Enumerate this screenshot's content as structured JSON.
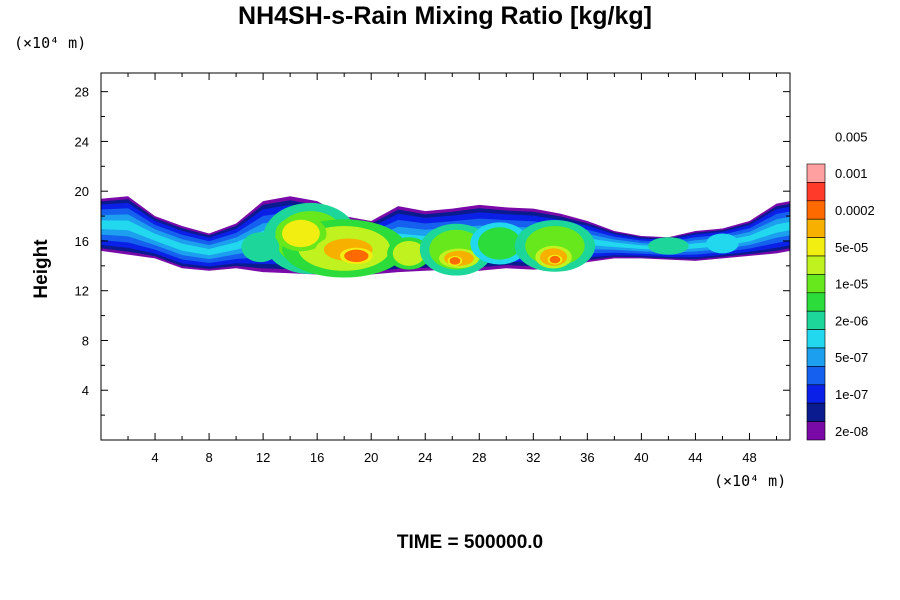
{
  "chart_data": {
    "type": "heatmap",
    "title": "NH4SH-s-Rain Mixing Ratio [kg/kg]",
    "ylabel": "Height",
    "y_unit": "(×10⁴ m)",
    "x_unit": "(×10⁴ m)",
    "footer": "TIME = 500000.0",
    "xlim": [
      0,
      51
    ],
    "ylim": [
      0,
      29.5
    ],
    "x_ticks": [
      4,
      8,
      12,
      16,
      20,
      24,
      28,
      32,
      36,
      40,
      44,
      48
    ],
    "y_ticks": [
      4,
      8,
      12,
      16,
      20,
      24,
      28
    ],
    "colorbar": {
      "colors": [
        "#7a0aa8",
        "#0a1a8f",
        "#0b20e6",
        "#1560ee",
        "#1b9fee",
        "#22d8ee",
        "#1cd69a",
        "#2bdc3a",
        "#67e81c",
        "#bff21e",
        "#f2ee12",
        "#f7b000",
        "#ff6a00",
        "#ff3a2a",
        "#ffa0a0"
      ],
      "labels": [
        "2e-08",
        "1e-07",
        "5e-07",
        "2e-06",
        "1e-05",
        "5e-05",
        "0.0002",
        "0.001",
        "0.005"
      ]
    },
    "band": {
      "outer": [
        [
          0,
          15.2,
          19.4
        ],
        [
          2,
          14.9,
          19.6
        ],
        [
          4,
          14.6,
          18.0
        ],
        [
          6,
          13.8,
          17.2
        ],
        [
          8,
          13.6,
          16.6
        ],
        [
          10,
          13.8,
          17.4
        ],
        [
          12,
          13.5,
          19.2
        ],
        [
          14,
          13.4,
          19.6
        ],
        [
          16,
          13.3,
          19.2
        ],
        [
          18,
          13.2,
          18.0
        ],
        [
          20,
          13.3,
          17.6
        ],
        [
          22,
          13.5,
          18.8
        ],
        [
          24,
          13.6,
          18.4
        ],
        [
          26,
          13.7,
          18.6
        ],
        [
          28,
          13.6,
          18.9
        ],
        [
          30,
          13.8,
          18.7
        ],
        [
          32,
          13.7,
          18.6
        ],
        [
          34,
          13.8,
          18.2
        ],
        [
          36,
          14.3,
          17.6
        ],
        [
          38,
          14.6,
          16.8
        ],
        [
          40,
          14.6,
          16.4
        ],
        [
          42,
          14.5,
          16.3
        ],
        [
          44,
          14.4,
          16.8
        ],
        [
          46,
          14.6,
          17.0
        ],
        [
          48,
          14.8,
          17.6
        ],
        [
          50,
          15.0,
          19.0
        ],
        [
          51,
          15.2,
          19.2
        ]
      ],
      "blobs": [
        {
          "x": 15.5,
          "y": 16.2,
          "rx": 2.6,
          "ry": 2.2,
          "level": 8
        },
        {
          "x": 18.0,
          "y": 15.4,
          "rx": 3.4,
          "ry": 1.8,
          "level": 9
        },
        {
          "x": 14.8,
          "y": 16.6,
          "rx": 1.4,
          "ry": 1.1,
          "level": 10
        },
        {
          "x": 18.3,
          "y": 15.3,
          "rx": 1.8,
          "ry": 0.9,
          "level": 11
        },
        {
          "x": 18.9,
          "y": 14.8,
          "rx": 0.9,
          "ry": 0.5,
          "level": 12
        },
        {
          "x": 22.8,
          "y": 15.0,
          "rx": 1.2,
          "ry": 1.0,
          "level": 9
        },
        {
          "x": 26.3,
          "y": 15.3,
          "rx": 2.0,
          "ry": 1.6,
          "level": 8
        },
        {
          "x": 26.5,
          "y": 14.6,
          "rx": 1.1,
          "ry": 0.6,
          "level": 11
        },
        {
          "x": 26.2,
          "y": 14.4,
          "rx": 0.4,
          "ry": 0.3,
          "level": 12
        },
        {
          "x": 29.5,
          "y": 15.8,
          "rx": 1.6,
          "ry": 1.3,
          "level": 7
        },
        {
          "x": 33.6,
          "y": 15.6,
          "rx": 2.2,
          "ry": 1.6,
          "level": 8
        },
        {
          "x": 33.5,
          "y": 14.7,
          "rx": 1.0,
          "ry": 0.7,
          "level": 11
        },
        {
          "x": 33.6,
          "y": 14.5,
          "rx": 0.4,
          "ry": 0.3,
          "level": 12
        },
        {
          "x": 11.8,
          "y": 15.5,
          "rx": 1.4,
          "ry": 1.2,
          "level": 6
        },
        {
          "x": 42.0,
          "y": 15.6,
          "rx": 1.5,
          "ry": 0.7,
          "level": 6
        },
        {
          "x": 46.0,
          "y": 15.8,
          "rx": 1.2,
          "ry": 0.8,
          "level": 5
        }
      ]
    }
  }
}
